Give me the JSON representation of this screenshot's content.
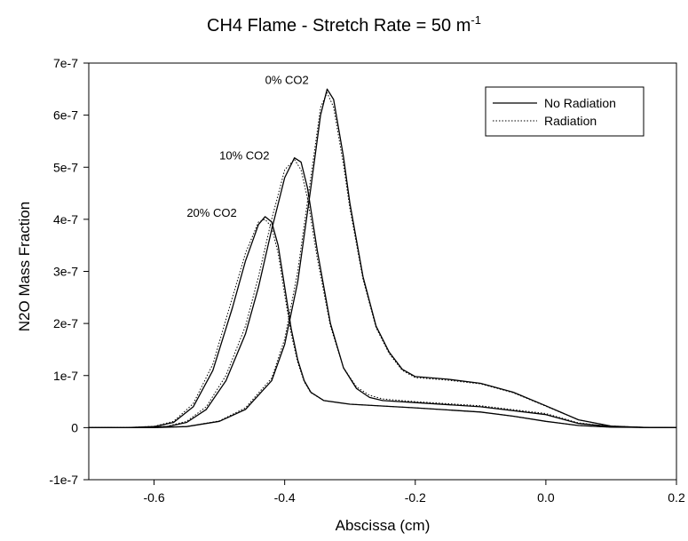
{
  "chart_data": {
    "type": "line",
    "title": {
      "text": "CH4 Flame - Stretch Rate = 50 m",
      "superscript": "-1"
    },
    "xlabel": "Abscissa (cm)",
    "ylabel": "N2O Mass Fraction",
    "xlim": [
      -0.7,
      0.2
    ],
    "ylim": [
      -1e-07,
      7e-07
    ],
    "xticks": [
      -0.6,
      -0.4,
      -0.2,
      0.0,
      0.2
    ],
    "xtick_labels": [
      "-0.6",
      "-0.4",
      "-0.2",
      "0.0",
      "0.2"
    ],
    "yticks": [
      -1e-07,
      0,
      1e-07,
      2e-07,
      3e-07,
      4e-07,
      5e-07,
      6e-07,
      7e-07
    ],
    "ytick_labels": [
      "-1e-7",
      "0",
      "1e-7",
      "2e-7",
      "3e-7",
      "4e-7",
      "5e-7",
      "6e-7",
      "7e-7"
    ],
    "grid": false,
    "legend": {
      "position": "top-right",
      "entries": [
        {
          "label": "No Radiation",
          "style": "solid"
        },
        {
          "label": "Radiation",
          "style": "dotted"
        }
      ]
    },
    "annotations": [
      {
        "text": "0% CO2",
        "x": -0.43,
        "y": 6.6e-07
      },
      {
        "text": "10% CO2",
        "x": -0.5,
        "y": 5.15e-07
      },
      {
        "text": "20% CO2",
        "x": -0.55,
        "y": 4.05e-07
      }
    ],
    "series": [
      {
        "group": "0% CO2",
        "style": "solid",
        "x": [
          -0.7,
          -0.6,
          -0.55,
          -0.5,
          -0.46,
          -0.42,
          -0.4,
          -0.38,
          -0.36,
          -0.345,
          -0.335,
          -0.325,
          -0.31,
          -0.3,
          -0.28,
          -0.26,
          -0.24,
          -0.22,
          -0.2,
          -0.15,
          -0.1,
          -0.05,
          0.0,
          0.05,
          0.1,
          0.15,
          0.2
        ],
        "y": [
          0,
          2e-10,
          2e-09,
          1.2e-08,
          3.5e-08,
          9e-08,
          1.6e-07,
          2.8e-07,
          4.6e-07,
          6e-07,
          6.5e-07,
          6.3e-07,
          5.2e-07,
          4.3e-07,
          2.9e-07,
          1.95e-07,
          1.45e-07,
          1.12e-07,
          9.8e-08,
          9.3e-08,
          8.5e-08,
          6.8e-08,
          4.2e-08,
          1.5e-08,
          3e-09,
          5e-10,
          0
        ]
      },
      {
        "group": "0% CO2",
        "style": "dotted",
        "x": [
          -0.7,
          -0.6,
          -0.55,
          -0.5,
          -0.46,
          -0.42,
          -0.4,
          -0.38,
          -0.36,
          -0.345,
          -0.335,
          -0.325,
          -0.31,
          -0.3,
          -0.28,
          -0.26,
          -0.24,
          -0.22,
          -0.2,
          -0.15,
          -0.1,
          -0.05,
          0.0,
          0.05,
          0.1,
          0.15,
          0.2
        ],
        "y": [
          0,
          2e-10,
          2e-09,
          1.3e-08,
          3.8e-08,
          9.5e-08,
          1.7e-07,
          3e-07,
          4.8e-07,
          6.15e-07,
          6.43e-07,
          6.15e-07,
          5.05e-07,
          4.2e-07,
          2.85e-07,
          1.92e-07,
          1.42e-07,
          1.1e-07,
          9.6e-08,
          9.1e-08,
          8.4e-08,
          6.7e-08,
          4.1e-08,
          1.5e-08,
          3e-09,
          5e-10,
          0
        ]
      },
      {
        "group": "10% CO2",
        "style": "solid",
        "x": [
          -0.7,
          -0.62,
          -0.58,
          -0.55,
          -0.52,
          -0.49,
          -0.46,
          -0.44,
          -0.42,
          -0.4,
          -0.385,
          -0.375,
          -0.365,
          -0.35,
          -0.33,
          -0.31,
          -0.29,
          -0.27,
          -0.25,
          -0.2,
          -0.1,
          0.0,
          0.05,
          0.1,
          0.15,
          0.2
        ],
        "y": [
          0,
          2e-10,
          2e-09,
          1e-08,
          3.5e-08,
          9e-08,
          1.8e-07,
          2.7e-07,
          3.8e-07,
          4.8e-07,
          5.18e-07,
          5.1e-07,
          4.6e-07,
          3.4e-07,
          2e-07,
          1.15e-07,
          7.5e-08,
          5.8e-08,
          5.2e-08,
          4.8e-08,
          4e-08,
          2.5e-08,
          8e-09,
          2e-09,
          3e-10,
          0
        ]
      },
      {
        "group": "10% CO2",
        "style": "dotted",
        "x": [
          -0.7,
          -0.62,
          -0.58,
          -0.55,
          -0.52,
          -0.49,
          -0.46,
          -0.44,
          -0.42,
          -0.4,
          -0.385,
          -0.375,
          -0.365,
          -0.35,
          -0.33,
          -0.31,
          -0.29,
          -0.27,
          -0.25,
          -0.2,
          -0.1,
          0.0,
          0.05,
          0.1,
          0.15,
          0.2
        ],
        "y": [
          0,
          2e-10,
          2.5e-09,
          1.2e-08,
          4e-08,
          1e-07,
          1.95e-07,
          2.9e-07,
          4e-07,
          4.95e-07,
          5.15e-07,
          4.95e-07,
          4.4e-07,
          3.25e-07,
          1.95e-07,
          1.15e-07,
          7.8e-08,
          6.2e-08,
          5.5e-08,
          5e-08,
          4.2e-08,
          2.7e-08,
          9e-09,
          2e-09,
          3e-10,
          0
        ]
      },
      {
        "group": "20% CO2",
        "style": "solid",
        "x": [
          -0.7,
          -0.64,
          -0.6,
          -0.57,
          -0.54,
          -0.51,
          -0.48,
          -0.46,
          -0.44,
          -0.43,
          -0.42,
          -0.41,
          -0.4,
          -0.39,
          -0.38,
          -0.37,
          -0.36,
          -0.34,
          -0.3,
          -0.2,
          -0.1,
          -0.05,
          0.0,
          0.05,
          0.1,
          0.2
        ],
        "y": [
          0,
          2e-10,
          2e-09,
          1e-08,
          4e-08,
          1.1e-07,
          2.3e-07,
          3.2e-07,
          3.9e-07,
          4.05e-07,
          3.95e-07,
          3.5e-07,
          2.7e-07,
          1.9e-07,
          1.3e-07,
          9e-08,
          6.8e-08,
          5.2e-08,
          4.5e-08,
          3.8e-08,
          3e-08,
          2.2e-08,
          1.2e-08,
          4e-09,
          1e-09,
          0
        ]
      },
      {
        "group": "20% CO2",
        "style": "dotted",
        "x": [
          -0.7,
          -0.64,
          -0.6,
          -0.57,
          -0.54,
          -0.51,
          -0.48,
          -0.46,
          -0.44,
          -0.43,
          -0.42,
          -0.41,
          -0.4,
          -0.39,
          -0.38,
          -0.37,
          -0.36,
          -0.34,
          -0.3,
          -0.2,
          -0.1,
          -0.05,
          0.0,
          0.05,
          0.1,
          0.2
        ],
        "y": [
          0,
          2e-10,
          2.5e-09,
          1.2e-08,
          4.6e-08,
          1.22e-07,
          2.5e-07,
          3.35e-07,
          3.95e-07,
          4e-07,
          3.85e-07,
          3.35e-07,
          2.55e-07,
          1.8e-07,
          1.25e-07,
          8.8e-08,
          6.7e-08,
          5.2e-08,
          4.5e-08,
          3.8e-08,
          3e-08,
          2.2e-08,
          1.2e-08,
          4e-09,
          1e-09,
          0
        ]
      }
    ]
  }
}
